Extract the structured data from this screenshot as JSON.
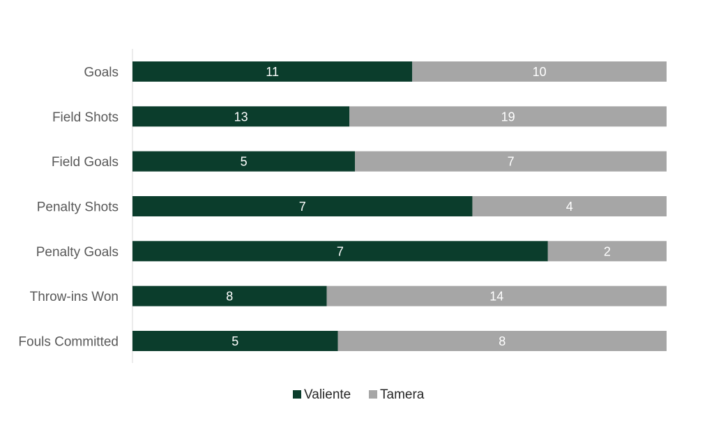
{
  "chart_data": {
    "type": "bar",
    "orientation": "horizontal",
    "stacking": "percent",
    "categories": [
      "Goals",
      "Field Shots",
      "Field Goals",
      "Penalty Shots",
      "Penalty Goals",
      "Throw-ins Won",
      "Fouls Committed"
    ],
    "series": [
      {
        "name": "Valiente",
        "values": [
          11,
          13,
          5,
          7,
          7,
          8,
          5
        ]
      },
      {
        "name": "Tamera",
        "values": [
          10,
          19,
          7,
          4,
          2,
          14,
          8
        ]
      }
    ],
    "colors": [
      "#0b3d2c",
      "#a6a6a6"
    ],
    "label_color": "#ffffff",
    "legend_position": "bottom",
    "grid": false
  }
}
